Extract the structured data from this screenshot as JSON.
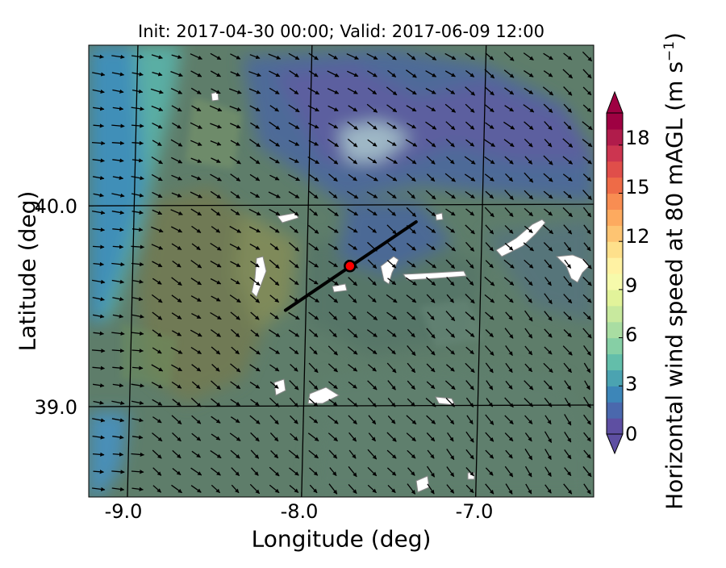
{
  "title": "Init: 2017-04-30 00:00; Valid: 2017-06-09 12:00",
  "axes": {
    "xlabel": "Longitude (deg)",
    "ylabel": "Latitude (deg)",
    "xlim": [
      -9.25,
      -6.35
    ],
    "ylim": [
      38.55,
      40.8
    ],
    "xticks": [
      "-9.0",
      "-8.0",
      "-7.0"
    ],
    "yticks": [
      "40.0",
      "39.0"
    ],
    "gridlines": "on"
  },
  "colorbar": {
    "label": "Horizontal wind speed at 80 mAGL (m s",
    "label_exponent": "−1",
    "label_close": ")",
    "range": [
      0,
      20
    ],
    "ticks": [
      "0",
      "3",
      "6",
      "9",
      "12",
      "15",
      "18"
    ],
    "extend": "both",
    "colors": [
      "#5e4fa2",
      "#4a68ad",
      "#3d86b8",
      "#4ba3b1",
      "#63beaa",
      "#86cfa5",
      "#a9dda2",
      "#c8e99e",
      "#e2f39a",
      "#f6faab",
      "#fff2a3",
      "#fee08b",
      "#fdc472",
      "#fdaa5f",
      "#f88d52",
      "#ee6b47",
      "#e04e4a",
      "#cc3550",
      "#b01c4b",
      "#9e0142"
    ]
  },
  "map": {
    "cross_section_line": {
      "start": [
        -8.12,
        39.48
      ],
      "end": [
        -7.37,
        39.92
      ],
      "color": "#000000"
    },
    "site_marker": {
      "lon": -7.75,
      "lat": 39.7,
      "fill": "#ff0000",
      "edge": "#000000"
    },
    "wind_vectors": "prevailing north-westerly, roughly uniform magnitude",
    "terrain_overlay": "semi-transparent terrain shading with white missing-data patches"
  },
  "chart_data": {
    "type": "heatmap",
    "title": "Init: 2017-04-30 00:00; Valid: 2017-06-09 12:00",
    "xlabel": "Longitude (deg)",
    "ylabel": "Latitude (deg)",
    "variable": "Horizontal wind speed at 80 mAGL",
    "units": "m s^-1",
    "xlim": [
      -9.25,
      -6.35
    ],
    "ylim": [
      38.55,
      40.8
    ],
    "value_range": [
      0,
      20
    ],
    "regions": [
      {
        "area": "Atlantic coastal strip (lon < -8.9, lat > 39.5)",
        "speed": 3
      },
      {
        "area": "far-west ocean edge (lon < -9.1)",
        "speed": 2
      },
      {
        "area": "central-north interior",
        "speed": 2
      },
      {
        "area": "south-central plains",
        "speed": 5
      },
      {
        "area": "west-central hills",
        "speed": 6
      },
      {
        "area": "north-east highlands",
        "speed": 1
      }
    ]
  }
}
